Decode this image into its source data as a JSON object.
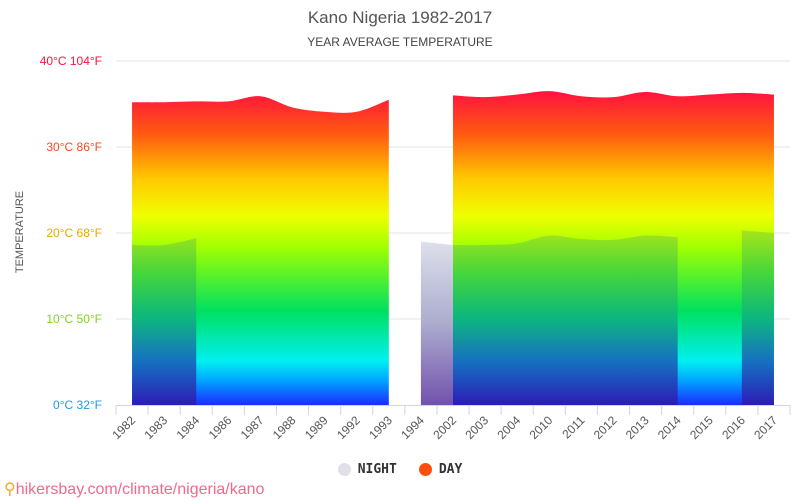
{
  "chart_data": {
    "type": "area",
    "title": "Kano Nigeria 1982-2017",
    "subtitle": "YEAR AVERAGE TEMPERATURE",
    "ylabel": "TEMPERATURE",
    "xlabel": "",
    "ylim": [
      0,
      40
    ],
    "grid": true,
    "legend_position": "bottom",
    "categories": [
      "1982",
      "1983",
      "1984",
      "1986",
      "1987",
      "1988",
      "1989",
      "1992",
      "1993",
      "1994",
      "2002",
      "2003",
      "2004",
      "2010",
      "2011",
      "2012",
      "2013",
      "2014",
      "2015",
      "2016",
      "2017"
    ],
    "yticks": [
      {
        "value": 0,
        "label": "0°C 32°F",
        "color": "#1e9be8"
      },
      {
        "value": 10,
        "label": "10°C 50°F",
        "color": "#7ed321"
      },
      {
        "value": 20,
        "label": "20°C 68°F",
        "color": "#e8a800"
      },
      {
        "value": 30,
        "label": "30°C 86°F",
        "color": "#ff4a1a"
      },
      {
        "value": 40,
        "label": "40°C 104°F",
        "color": "#ff1040"
      }
    ],
    "series": [
      {
        "name": "NIGHT",
        "color": "#e0e0e6",
        "values": [
          18.6,
          18.6,
          19.4,
          null,
          null,
          null,
          null,
          null,
          null,
          19.0,
          18.6,
          18.6,
          18.8,
          19.7,
          19.3,
          19.2,
          19.7,
          19.5,
          null,
          20.3,
          20.0
        ]
      },
      {
        "name": "DAY",
        "color": "#ff4d0d",
        "values": [
          35.2,
          35.2,
          35.3,
          35.3,
          35.9,
          34.6,
          34.1,
          34.1,
          35.5,
          null,
          36.0,
          35.8,
          36.1,
          36.5,
          35.9,
          35.8,
          36.4,
          35.9,
          36.1,
          36.3,
          36.1
        ]
      }
    ]
  },
  "source": "hikersbay.com/climate/nigeria/kano",
  "colors": {
    "axis": "#ccd6eb",
    "grid": "#e6e6e6"
  }
}
